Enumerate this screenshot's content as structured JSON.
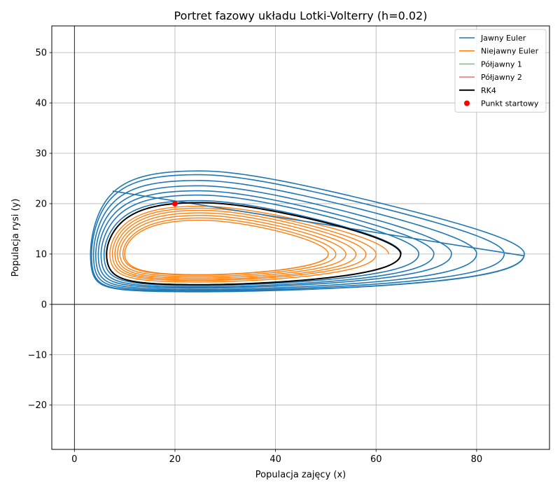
{
  "chart_data": {
    "type": "line",
    "title": "Portret fazowy układu Lotki-Volterry (h=0.02)",
    "xlabel": "Populacja zajęcy (x)",
    "ylabel": "Populacja rysi (y)",
    "xlim": [
      -4.5,
      94.5
    ],
    "ylim": [
      -28.8,
      55.3
    ],
    "xticks": [
      0,
      20,
      40,
      60,
      80
    ],
    "xtick_labels": [
      "0",
      "20",
      "40",
      "60",
      "80"
    ],
    "yticks": [
      -20,
      -10,
      0,
      10,
      20,
      30,
      40,
      50
    ],
    "ytick_labels": [
      "−20",
      "−10",
      "0",
      "10",
      "20",
      "30",
      "40",
      "50"
    ],
    "grid": true,
    "zero_lines": true,
    "legend_position": "top-right",
    "series": [
      {
        "name": "Jawny Euler",
        "color": "#1f77b4",
        "kind": "spiral-out",
        "loops": [
          {
            "x_min": 6.2,
            "x_max": 65.0,
            "y_min": 3.9,
            "y_max": 20.3
          },
          {
            "x_min": 5.6,
            "x_max": 68.5,
            "y_min": 3.7,
            "y_max": 21.5
          },
          {
            "x_min": 5.0,
            "x_max": 71.5,
            "y_min": 3.4,
            "y_max": 22.3
          },
          {
            "x_min": 4.5,
            "x_max": 75.0,
            "y_min": 3.2,
            "y_max": 23.3
          },
          {
            "x_min": 4.0,
            "x_max": 80.0,
            "y_min": 2.9,
            "y_max": 24.3
          },
          {
            "x_min": 3.6,
            "x_max": 85.5,
            "y_min": 2.7,
            "y_max": 25.5
          },
          {
            "x_min": 3.2,
            "x_max": 89.5,
            "y_min": 2.5,
            "y_max": 26.5
          }
        ],
        "end": [
          7.6,
          22.5
        ]
      },
      {
        "name": "Niejawny Euler",
        "color": "#ff7f0e",
        "kind": "spiral-in",
        "loops": [
          {
            "x_min": 6.8,
            "x_max": 62.5,
            "y_min": 4.2,
            "y_max": 19.6
          },
          {
            "x_min": 7.3,
            "x_max": 60.0,
            "y_min": 4.5,
            "y_max": 19.2
          },
          {
            "x_min": 7.8,
            "x_max": 58.0,
            "y_min": 4.8,
            "y_max": 18.8
          },
          {
            "x_min": 8.3,
            "x_max": 56.0,
            "y_min": 5.0,
            "y_max": 18.3
          },
          {
            "x_min": 8.8,
            "x_max": 54.0,
            "y_min": 5.3,
            "y_max": 17.8
          },
          {
            "x_min": 9.3,
            "x_max": 52.0,
            "y_min": 5.6,
            "y_max": 17.3
          },
          {
            "x_min": 10.0,
            "x_max": 50.5,
            "y_min": 5.9,
            "y_max": 16.7
          }
        ]
      },
      {
        "name": "Półjawny 1",
        "color": "#2ca02c",
        "kind": "closed",
        "loops": [
          {
            "x_min": 6.4,
            "x_max": 64.9,
            "y_min": 3.9,
            "y_max": 20.2
          }
        ]
      },
      {
        "name": "Półjawny 2",
        "color": "#d62728",
        "kind": "closed",
        "loops": [
          {
            "x_min": 6.4,
            "x_max": 64.9,
            "y_min": 3.9,
            "y_max": 20.2
          }
        ]
      },
      {
        "name": "RK4",
        "color": "#000000",
        "kind": "closed",
        "loops": [
          {
            "x_min": 6.4,
            "x_max": 64.9,
            "y_min": 3.9,
            "y_max": 20.2
          }
        ]
      }
    ],
    "start_point": {
      "name": "Punkt startowy",
      "x": 20,
      "y": 20,
      "color": "#ff0000"
    }
  }
}
